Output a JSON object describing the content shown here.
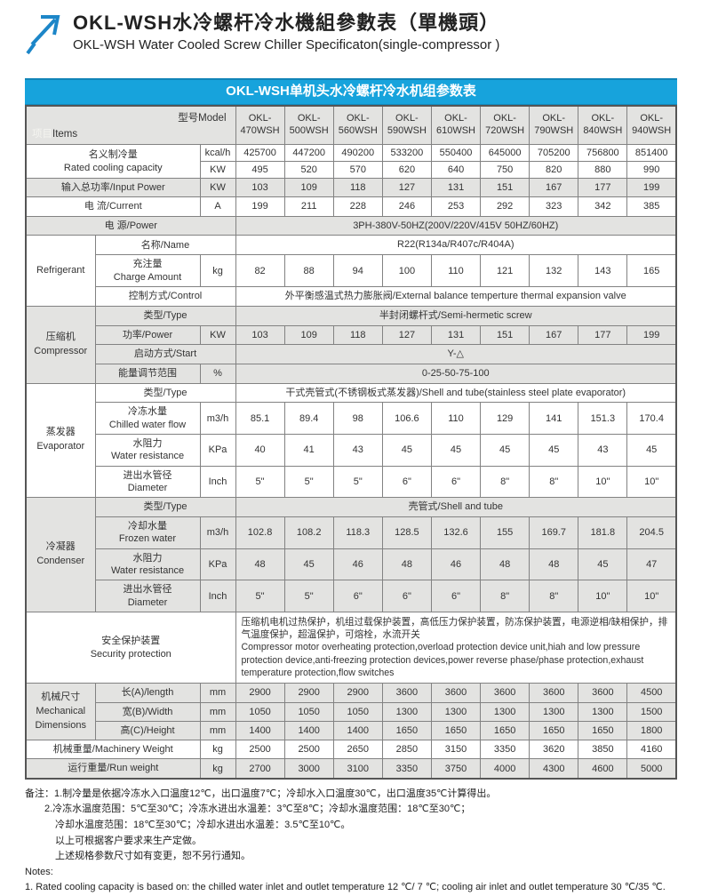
{
  "header": {
    "title_zh": "OKL-WSH水冷螺杆冷水機組參數表（單機頭）",
    "title_en": "OKL-WSH Water Cooled Screw Chiller Specificaton(single-compressor )",
    "banner": "OKL-WSH单机头水冷螺杆冷水机组参数表"
  },
  "colors": {
    "banner_blue": "#17a3dc",
    "section_gray": "#e3e3e1",
    "brand_arrow_blue": "#1c86c8"
  },
  "table": {
    "corner": {
      "items_zh": "项目",
      "items_en": "Items",
      "model_label": "型号Model"
    },
    "models": [
      "OKL-\n470WSH",
      "OKL-\n500WSH",
      "OKL-\n560WSH",
      "OKL-\n590WSH",
      "OKL-\n610WSH",
      "OKL-\n720WSH",
      "OKL-\n790WSH",
      "OKL-\n840WSH",
      "OKL-\n940WSH"
    ],
    "sections": [
      {
        "bg": "white",
        "rows": [
          {
            "label": "名义制冷量\nRated cooling capacity",
            "label_rowspan": 2,
            "unit": "kcal/h",
            "values": [
              425700,
              447200,
              490200,
              533200,
              550400,
              645000,
              705200,
              756800,
              851400
            ]
          },
          {
            "unit": "KW",
            "values": [
              495,
              520,
              570,
              620,
              640,
              750,
              820,
              880,
              990
            ]
          }
        ]
      },
      {
        "bg": "gray",
        "rows": [
          {
            "label": "输入总功率/Input Power",
            "unit": "KW",
            "values": [
              103,
              109,
              118,
              127,
              131,
              151,
              167,
              177,
              199
            ]
          }
        ]
      },
      {
        "bg": "white",
        "rows": [
          {
            "label": "电  流/Current",
            "unit": "A",
            "values": [
              199,
              211,
              228,
              246,
              253,
              292,
              323,
              342,
              385
            ]
          }
        ]
      },
      {
        "bg": "gray",
        "rows": [
          {
            "label": "电    源/Power",
            "label_spans_unit": true,
            "span_value": "3PH-380V-50HZ(200V/220V/415V  50HZ/60HZ)"
          }
        ]
      },
      {
        "bg": "white",
        "group": {
          "text": "Refrigerant"
        },
        "rows": [
          {
            "label": "名称/Name",
            "label_spans_unit": true,
            "span_value": "R22(R134a/R407c/R404A)"
          },
          {
            "label": "充注量\nCharge Amount",
            "unit": "kg",
            "values": [
              82,
              88,
              94,
              100,
              110,
              121,
              132,
              143,
              165
            ]
          },
          {
            "label": "控制方式/Control",
            "label_spans_unit": true,
            "span_value": "外平衡感温式热力膨胀阀/External balance temperture thermal expansion valve"
          }
        ]
      },
      {
        "bg": "gray",
        "group": {
          "text": "压缩机\nCompressor"
        },
        "rows": [
          {
            "label": "类型/Type",
            "label_spans_unit": true,
            "span_value": "半封闭螺杆式/Semi-hermetic screw"
          },
          {
            "label": "功率/Power",
            "unit": "KW",
            "values": [
              103,
              109,
              118,
              127,
              131,
              151,
              167,
              177,
              199
            ]
          },
          {
            "label": "启动方式/Start",
            "label_spans_unit": true,
            "span_value": "Y-△"
          },
          {
            "label": "能量调节范围",
            "unit": "%",
            "span_value": "0-25-50-75-100"
          }
        ]
      },
      {
        "bg": "white",
        "group": {
          "text": "蒸发器\nEvaporator"
        },
        "rows": [
          {
            "label": "类型/Type",
            "label_spans_unit": true,
            "span_value": "干式壳管式(不锈钢板式蒸发器)/Shell and tube(stainless steel plate evaporator)"
          },
          {
            "label": "冷冻水量\nChilled water flow",
            "unit": "m3/h",
            "values": [
              85.1,
              89.4,
              98,
              106.6,
              110,
              129,
              141,
              151.3,
              170.4
            ]
          },
          {
            "label": "水阻力\nWater resistance",
            "unit": "KPa",
            "values": [
              40,
              41,
              43,
              45,
              45,
              45,
              45,
              43,
              45
            ]
          },
          {
            "label": "进出水管径\nDiameter",
            "unit": "Inch",
            "values": [
              "5\"",
              "5\"",
              "5\"",
              "6\"",
              "6\"",
              "8\"",
              "8\"",
              "10\"",
              "10\""
            ]
          }
        ]
      },
      {
        "bg": "gray",
        "group": {
          "text": "冷凝器\nCondenser"
        },
        "rows": [
          {
            "label": "类型/Type",
            "label_spans_unit": true,
            "span_value": "壳管式/Shell and tube"
          },
          {
            "label": "冷却水量\nFrozen water",
            "unit": "m3/h",
            "values": [
              102.8,
              108.2,
              118.3,
              128.5,
              132.6,
              155,
              169.7,
              181.8,
              204.5
            ]
          },
          {
            "label": "水阻力\nWater resistance",
            "unit": "KPa",
            "values": [
              48,
              45,
              46,
              48,
              46,
              48,
              48,
              45,
              47
            ]
          },
          {
            "label": "进出水管径\nDiameter",
            "unit": "Inch",
            "values": [
              "5\"",
              "5\"",
              "6\"",
              "6\"",
              "6\"",
              "8\"",
              "8\"",
              "10\"",
              "10\""
            ]
          }
        ]
      },
      {
        "bg": "white",
        "rows": [
          {
            "label": "安全保护装置\nSecurity protection",
            "label_spans_unit": true,
            "align": "left",
            "span_value": "压缩机电机过热保护，机组过载保护装置，高低压力保护装置，防冻保护装置，电源逆相/缺相保护，排气温度保护，超温保护，可熔栓，水流开关\nCompressor motor overheating protection,overload protection device unit,hiah and low pressure protection device,anti-freezing protection devices,power reverse phase/phase protection,exhaust temperature protection,flow switches"
          }
        ]
      },
      {
        "bg": "gray",
        "group": {
          "text": "机械尺寸\nMechanical\nDimensions"
        },
        "rows": [
          {
            "label": "长(A)/length",
            "unit": "mm",
            "values": [
              2900,
              2900,
              2900,
              3600,
              3600,
              3600,
              3600,
              3600,
              4500
            ]
          },
          {
            "label": "宽(B)/Width",
            "unit": "mm",
            "values": [
              1050,
              1050,
              1050,
              1300,
              1300,
              1300,
              1300,
              1300,
              1500
            ]
          },
          {
            "label": "高(C)/Height",
            "unit": "mm",
            "values": [
              1400,
              1400,
              1400,
              1650,
              1650,
              1650,
              1650,
              1650,
              1800
            ]
          }
        ]
      },
      {
        "bg": "white",
        "rows": [
          {
            "label": "机械重量/Machinery Weight",
            "unit": "kg",
            "values": [
              2500,
              2500,
              2650,
              2850,
              3150,
              3350,
              3620,
              3850,
              4160
            ]
          }
        ]
      },
      {
        "bg": "gray",
        "rows": [
          {
            "label": "运行重量/Run weight",
            "unit": "kg",
            "values": [
              2700,
              3000,
              3100,
              3350,
              3750,
              4000,
              4300,
              4600,
              5000
            ]
          }
        ]
      }
    ]
  },
  "notes": {
    "zh": [
      "备注：1.制冷量是依据冷冻水入口温度12℃，出口温度7℃；冷却水入口温度30℃，出口温度35℃计算得出。",
      "2.冷冻水温度范围：5℃至30℃；冷冻水进出水温差：3℃至8℃；冷却水温度范围：18℃至30℃；",
      "冷却水温度范围：18℃至30℃；冷却水进出水温差：3.5℃至10℃。",
      "以上可根据客户要求来生产定做。",
      "上述规格参数尺寸如有变更，恕不另行通知。"
    ],
    "en_header": "Notes:",
    "en": "1. Rated cooling capacity is based on: the chilled water inlet and outlet temperature 12 ℃/ 7 ℃; cooling air inlet and outlet temperature 30 ℃/35 ℃."
  }
}
